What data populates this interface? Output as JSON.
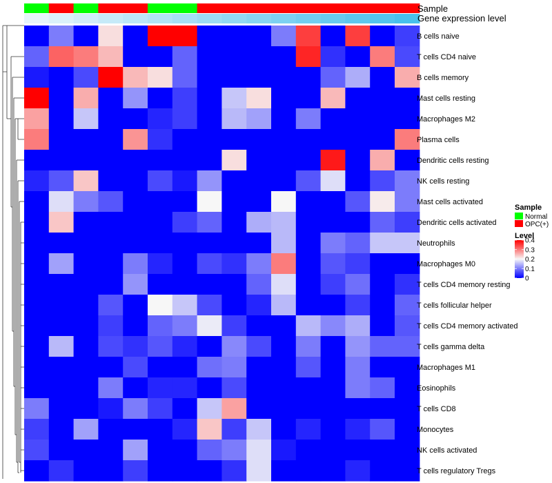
{
  "chart_data": {
    "type": "heatmap",
    "title": "",
    "annotation_labels": {
      "sample": "Sample",
      "expression": "Gene expression level"
    },
    "sample_groups": [
      "Normal",
      "OPC",
      "Normal",
      "OPC",
      "OPC",
      "Normal",
      "Normal",
      "OPC",
      "OPC",
      "OPC",
      "OPC",
      "OPC",
      "OPC",
      "OPC",
      "OPC",
      "OPC"
    ],
    "expression_levels": [
      0.05,
      0.06,
      0.07,
      0.08,
      0.09,
      0.1,
      0.11,
      0.12,
      0.13,
      0.14,
      0.15,
      0.16,
      0.17,
      0.18,
      0.19,
      0.2
    ],
    "rows": [
      "B cells naive",
      "T cells CD4 naive",
      "B cells memory",
      "Mast cells resting",
      "Macrophages M2",
      "Plasma cells",
      "Dendritic cells resting",
      "NK cells resting",
      "Mast cells activated",
      "Dendritic cells activated",
      "Neutrophils",
      "Macrophages M0",
      "T cells CD4 memory resting",
      "T cells follicular helper",
      "T cells CD4 memory activated",
      "T cells gamma delta",
      "Macrophages M1",
      "Eosinophils",
      "T cells CD8",
      "Monocytes",
      "NK cells activated",
      "T cells regulatory  Tregs"
    ],
    "values": [
      [
        0,
        0.1,
        0,
        0.22,
        0,
        0.4,
        0.4,
        0,
        0,
        0,
        0.1,
        0.35,
        0,
        0.35,
        0,
        0.05
      ],
      [
        0.08,
        0.32,
        0.3,
        0.25,
        0,
        0,
        0.08,
        0,
        0,
        0,
        0,
        0.37,
        0.04,
        0,
        0.3,
        0.06
      ],
      [
        0.02,
        0,
        0.06,
        0.4,
        0.25,
        0.22,
        0.08,
        0,
        0,
        0,
        0,
        0,
        0.08,
        0.14,
        0,
        0.26
      ],
      [
        0.4,
        0,
        0.26,
        0,
        0.12,
        0,
        0.05,
        0,
        0.16,
        0.22,
        0,
        0,
        0.25,
        0,
        0,
        0
      ],
      [
        0.27,
        0,
        0.16,
        0,
        0,
        0.03,
        0.05,
        0,
        0.15,
        0.13,
        0,
        0.1,
        0,
        0,
        0,
        0
      ],
      [
        0.3,
        0,
        0,
        0,
        0.28,
        0.04,
        0,
        0,
        0,
        0,
        0,
        0,
        0,
        0,
        0,
        0.3
      ],
      [
        0,
        0,
        0,
        0,
        0,
        0,
        0,
        0,
        0.22,
        0,
        0,
        0,
        0.38,
        0,
        0.26,
        0
      ],
      [
        0.03,
        0.07,
        0.24,
        0,
        0,
        0.06,
        0.02,
        0.12,
        0,
        0,
        0,
        0.07,
        0.18,
        0,
        0.06,
        0.1
      ],
      [
        0,
        0.18,
        0.1,
        0.07,
        0,
        0,
        0,
        0.2,
        0,
        0,
        0.2,
        0,
        0,
        0.07,
        0.21,
        0.1
      ],
      [
        0,
        0.24,
        0,
        0,
        0,
        0,
        0.05,
        0.08,
        0,
        0.14,
        0.15,
        0,
        0,
        0,
        0.08,
        0.05
      ],
      [
        0,
        0,
        0,
        0,
        0,
        0,
        0,
        0,
        0,
        0,
        0.15,
        0,
        0.1,
        0.08,
        0.16,
        0.16
      ],
      [
        0,
        0.13,
        0,
        0,
        0.1,
        0.03,
        0,
        0.06,
        0.04,
        0.1,
        0.3,
        0,
        0.07,
        0.05,
        0,
        0
      ],
      [
        0,
        0,
        0,
        0,
        0.12,
        0,
        0,
        0,
        0,
        0.08,
        0.18,
        0,
        0.05,
        0.09,
        0,
        0.04
      ],
      [
        0,
        0,
        0,
        0.07,
        0,
        0.2,
        0.16,
        0.06,
        0,
        0.03,
        0.15,
        0,
        0,
        0.05,
        0,
        0.08
      ],
      [
        0,
        0,
        0,
        0.05,
        0,
        0.08,
        0.1,
        0.19,
        0.05,
        0,
        0,
        0.15,
        0.11,
        0.14,
        0,
        0.07
      ],
      [
        0,
        0.15,
        0,
        0.06,
        0.04,
        0.07,
        0.03,
        0,
        0.11,
        0.06,
        0,
        0.1,
        0,
        0.12,
        0.08,
        0.08
      ],
      [
        0,
        0,
        0,
        0,
        0.06,
        0,
        0,
        0.09,
        0.1,
        0,
        0,
        0.07,
        0,
        0.1,
        0,
        0
      ],
      [
        0,
        0,
        0,
        0.1,
        0,
        0.03,
        0.03,
        0,
        0.06,
        0,
        0,
        0,
        0,
        0.1,
        0.08,
        0
      ],
      [
        0.1,
        0,
        0,
        0.02,
        0.1,
        0.05,
        0,
        0.16,
        0.27,
        0,
        0,
        0,
        0,
        0,
        0,
        0
      ],
      [
        0.05,
        0,
        0.13,
        0,
        0,
        0,
        0.03,
        0.24,
        0.05,
        0.16,
        0,
        0.03,
        0,
        0.03,
        0.07,
        0
      ],
      [
        0.06,
        0,
        0,
        0,
        0.13,
        0,
        0,
        0.08,
        0.1,
        0.18,
        0.02,
        0,
        0,
        0,
        0,
        0
      ],
      [
        0,
        0.04,
        0,
        0,
        0.05,
        0,
        0,
        0,
        0.04,
        0.18,
        0,
        0,
        0,
        0.03,
        0,
        0
      ]
    ],
    "color_scale": {
      "min": 0,
      "max": 0.4,
      "low": "#0000ff",
      "mid": "#f7f7f7",
      "high": "#ff0000",
      "mid_value": 0.2
    },
    "colors": {
      "Normal": "#00ff00",
      "OPC": "#ff0000",
      "expr_low": "#e6f4fb",
      "expr_high": "#48c0ec"
    },
    "legend": {
      "sample_title": "Sample",
      "sample_items": [
        {
          "label": "Normal",
          "key": "Normal"
        },
        {
          "label": "OPC(+)",
          "key": "OPC"
        }
      ],
      "level_title": "Level",
      "level_ticks": [
        {
          "value": 0.4,
          "label": "0.4"
        },
        {
          "value": 0.3,
          "label": "0.3"
        },
        {
          "value": 0.2,
          "label": "0.2"
        },
        {
          "value": 0.1,
          "label": "0.1"
        },
        {
          "value": 0,
          "label": "0"
        }
      ]
    }
  }
}
